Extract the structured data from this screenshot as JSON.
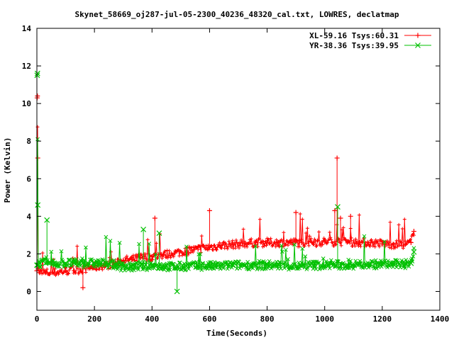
{
  "chart_data": {
    "type": "line",
    "title": "Skynet_58669_oj287-jul-05-2300_40236_48320_cal.txt, LOWRES, declatmap",
    "xlabel": "Time(Seconds)",
    "ylabel": "Power (Kelvin)",
    "xlim": [
      0,
      1400
    ],
    "ylim": [
      -1,
      14
    ],
    "xticks": [
      "0",
      "200",
      "400",
      "600",
      "800",
      "1000",
      "1200",
      "1400"
    ],
    "yticks": [
      "0",
      "2",
      "4",
      "6",
      "8",
      "10",
      "12",
      "14"
    ],
    "legend_position": "top-right",
    "grid": false,
    "series": [
      {
        "name": "XL-59.16 Tsys:60.31",
        "color": "#ff0000",
        "marker": "plus",
        "x": [
          0,
          1,
          2,
          3,
          4,
          10,
          30,
          60,
          100,
          130,
          160,
          200,
          240,
          280,
          300,
          330,
          360,
          400,
          440,
          480,
          520,
          560,
          600,
          640,
          680,
          720,
          760,
          800,
          840,
          880,
          920,
          960,
          1000,
          1040,
          1080,
          1120,
          1160,
          1200,
          1240,
          1280,
          1300,
          1310
        ],
        "y": [
          1.1,
          10.3,
          10.4,
          7.1,
          1.2,
          1.0,
          1.0,
          1.0,
          1.1,
          1.1,
          1.2,
          1.3,
          1.4,
          1.5,
          1.65,
          1.7,
          1.8,
          1.85,
          1.95,
          2.05,
          2.15,
          2.25,
          2.35,
          2.45,
          2.5,
          2.55,
          2.6,
          2.6,
          2.6,
          2.6,
          2.6,
          2.6,
          2.65,
          2.65,
          2.65,
          2.6,
          2.6,
          2.55,
          2.5,
          2.5,
          2.6,
          3.2
        ],
        "spikes": [
          {
            "x": 160,
            "y": 0.2
          },
          {
            "x": 410,
            "y": 3.9
          },
          {
            "x": 600,
            "y": 4.3
          },
          {
            "x": 900,
            "y": 4.2
          },
          {
            "x": 1035,
            "y": 4.3
          },
          {
            "x": 1043,
            "y": 7.1
          },
          {
            "x": 1055,
            "y": 3.9
          },
          {
            "x": 1090,
            "y": 4.0
          }
        ]
      },
      {
        "name": "YR-38.36 Tsys:39.95",
        "color": "#00c000",
        "marker": "cross",
        "x": [
          0,
          1,
          2,
          3,
          4,
          10,
          30,
          60,
          100,
          130,
          160,
          200,
          240,
          280,
          300,
          330,
          360,
          400,
          440,
          480,
          520,
          560,
          600,
          640,
          680,
          720,
          760,
          800,
          840,
          880,
          920,
          960,
          1000,
          1040,
          1080,
          1120,
          1160,
          1200,
          1240,
          1280,
          1300,
          1310
        ],
        "y": [
          1.4,
          11.5,
          11.6,
          4.6,
          1.4,
          1.5,
          1.5,
          1.5,
          1.5,
          1.5,
          1.5,
          1.5,
          1.5,
          1.4,
          1.3,
          1.3,
          1.35,
          1.35,
          1.35,
          1.3,
          1.35,
          1.35,
          1.35,
          1.35,
          1.4,
          1.4,
          1.4,
          1.4,
          1.4,
          1.35,
          1.35,
          1.4,
          1.4,
          1.4,
          1.4,
          1.45,
          1.45,
          1.45,
          1.45,
          1.45,
          1.5,
          2.1
        ],
        "spikes": [
          {
            "x": 35,
            "y": 3.8
          },
          {
            "x": 370,
            "y": 3.3
          },
          {
            "x": 425,
            "y": 3.1
          },
          {
            "x": 487,
            "y": 0.0
          },
          {
            "x": 1045,
            "y": 4.5
          }
        ]
      }
    ]
  }
}
